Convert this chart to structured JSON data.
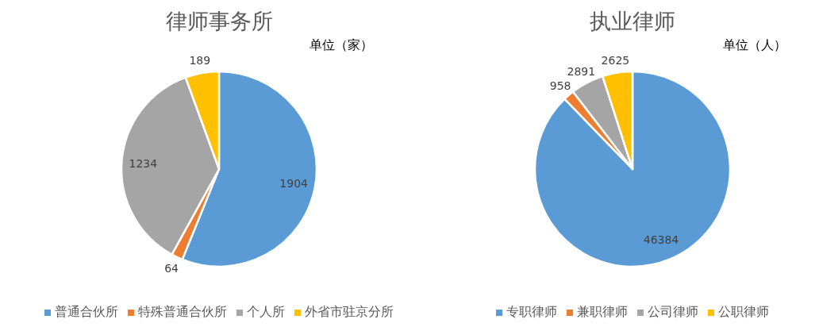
{
  "chart_data": [
    {
      "type": "pie",
      "title": "律师事务所",
      "annotations": [
        "单位（家）"
      ],
      "categories": [
        "普通合伙所",
        "特殊普通合伙所",
        "个人所",
        "外省市驻京分所"
      ],
      "values": [
        1904,
        64,
        1234,
        189
      ],
      "colors": [
        "#5b9bd5",
        "#ed7d31",
        "#a5a5a5",
        "#ffc000"
      ],
      "data_labels": true,
      "legend": "bottom"
    },
    {
      "type": "pie",
      "title": "执业律师",
      "annotations": [
        "单位（人）"
      ],
      "categories": [
        "专职律师",
        "兼职律师",
        "公司律师",
        "公职律师"
      ],
      "values": [
        46384,
        958,
        2891,
        2625
      ],
      "colors": [
        "#5b9bd5",
        "#ed7d31",
        "#a5a5a5",
        "#ffc000"
      ],
      "data_labels": true,
      "legend": "bottom"
    }
  ]
}
